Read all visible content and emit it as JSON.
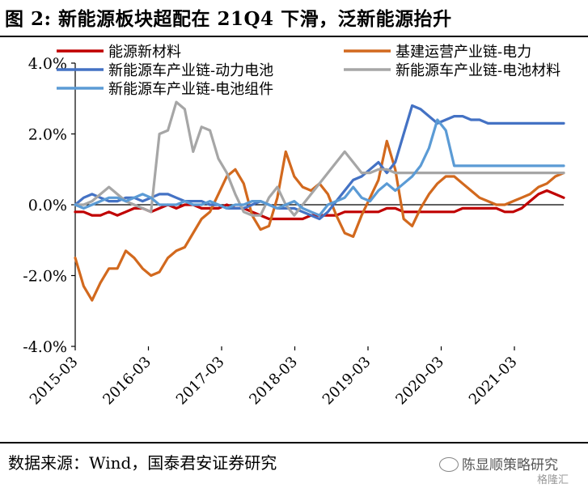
{
  "title": "图 2: 新能源板块超配在 21Q4 下滑，泛新能源抬升",
  "source": "数据来源：Wind，国泰君安证券研究",
  "brand": "陈显顺策略研究",
  "watermark": "格隆汇",
  "chart_data": {
    "type": "line",
    "title": "",
    "xlabel": "",
    "ylabel": "",
    "ylim": [
      -4.0,
      4.0
    ],
    "y_ticks": [
      "4.0%",
      "2.0%",
      "0.0%",
      "-2.0%",
      "-4.0%"
    ],
    "y_tick_values": [
      4,
      2,
      0,
      -2,
      -4
    ],
    "x_start": "2015-03",
    "x_ticks": [
      "2015-03",
      "2016-03",
      "2017-03",
      "2018-03",
      "2019-03",
      "2020-03",
      "2021-03"
    ],
    "grid": false,
    "legend": "top",
    "series": [
      {
        "name": "能源新材料",
        "color": "#C00000",
        "values": [
          -0.2,
          -0.2,
          -0.3,
          -0.3,
          -0.2,
          -0.3,
          -0.2,
          -0.1,
          -0.1,
          -0.2,
          -0.1,
          0.0,
          -0.1,
          0.0,
          0.0,
          -0.1,
          -0.1,
          -0.1,
          0.0,
          -0.1,
          -0.1,
          -0.2,
          -0.3,
          -0.4,
          -0.4,
          -0.4,
          -0.4,
          -0.4,
          -0.3,
          -0.3,
          -0.3,
          -0.3,
          -0.2,
          -0.2,
          -0.2,
          -0.2,
          -0.2,
          -0.1,
          -0.1,
          -0.2,
          -0.2,
          -0.2,
          -0.2,
          -0.2,
          -0.2,
          -0.2,
          -0.1,
          -0.1,
          -0.1,
          -0.1,
          -0.1,
          -0.2,
          -0.2,
          -0.1,
          0.1,
          0.3,
          0.4,
          0.3,
          0.2
        ]
      },
      {
        "name": "基建运营产业链-电力",
        "color": "#D2691E",
        "values": [
          -1.5,
          -2.3,
          -2.7,
          -2.2,
          -1.8,
          -1.8,
          -1.3,
          -1.5,
          -1.8,
          -2.0,
          -1.9,
          -1.5,
          -1.3,
          -1.2,
          -0.8,
          -0.4,
          -0.2,
          0.3,
          0.8,
          1.0,
          0.6,
          -0.3,
          -0.7,
          -0.6,
          0.2,
          1.5,
          0.8,
          0.5,
          0.4,
          0.6,
          0.3,
          -0.3,
          -0.8,
          -0.9,
          -0.3,
          0.2,
          0.7,
          1.8,
          1.0,
          -0.4,
          -0.6,
          -0.1,
          0.3,
          0.6,
          0.8,
          0.8,
          0.6,
          0.4,
          0.2,
          0.1,
          0.0,
          0.0,
          0.1,
          0.2,
          0.3,
          0.5,
          0.6,
          0.8,
          0.9
        ]
      },
      {
        "name": "新能源车产业链-动力电池",
        "color": "#4472C4",
        "values": [
          0.0,
          0.2,
          0.3,
          0.2,
          0.1,
          0.1,
          0.2,
          0.2,
          0.1,
          0.2,
          0.3,
          0.3,
          0.2,
          0.1,
          0.1,
          0.1,
          0.0,
          0.0,
          -0.1,
          -0.1,
          -0.1,
          0.0,
          0.1,
          0.0,
          -0.1,
          -0.1,
          -0.1,
          -0.2,
          -0.3,
          -0.4,
          -0.2,
          0.1,
          0.4,
          0.7,
          0.8,
          1.0,
          1.2,
          0.9,
          1.2,
          2.0,
          2.8,
          2.7,
          2.5,
          2.3,
          2.4,
          2.5,
          2.5,
          2.4,
          2.4,
          2.3,
          2.3,
          2.3,
          2.3,
          2.3,
          2.3,
          2.3,
          2.3,
          2.3,
          2.3
        ]
      },
      {
        "name": "新能源车产业链-电池材料",
        "color": "#A6A6A6",
        "values": [
          0.0,
          0.0,
          0.1,
          0.3,
          0.5,
          0.3,
          0.1,
          0.0,
          -0.1,
          -0.2,
          2.0,
          2.1,
          2.9,
          2.7,
          1.5,
          2.2,
          2.1,
          1.3,
          0.9,
          0.3,
          -0.2,
          -0.3,
          -0.3,
          0.2,
          0.5,
          0.0,
          -0.3,
          0.0,
          0.3,
          0.6,
          0.9,
          1.2,
          1.5,
          1.2,
          0.9,
          0.9,
          1.0,
          1.0,
          0.9,
          0.9,
          0.9,
          0.9,
          0.9,
          0.9,
          0.9,
          0.9,
          0.9,
          0.9,
          0.9,
          0.9,
          0.9,
          0.9,
          0.9,
          0.9,
          0.9,
          0.9,
          0.9,
          0.9,
          0.9
        ]
      },
      {
        "name": "新能源车产业链-电池组件",
        "color": "#5B9BD5",
        "values": [
          0.0,
          -0.1,
          0.0,
          0.1,
          0.2,
          0.2,
          0.1,
          0.2,
          0.3,
          0.2,
          0.0,
          0.0,
          0.0,
          0.1,
          0.0,
          0.0,
          0.1,
          0.0,
          -0.1,
          0.0,
          0.0,
          0.1,
          0.1,
          0.0,
          -0.1,
          0.0,
          0.1,
          -0.1,
          -0.2,
          -0.3,
          0.0,
          0.1,
          0.2,
          0.5,
          0.2,
          0.1,
          0.4,
          0.6,
          0.4,
          0.6,
          0.8,
          1.1,
          1.6,
          2.4,
          2.1,
          1.1,
          1.1,
          1.1,
          1.1,
          1.1,
          1.1,
          1.1,
          1.1,
          1.1,
          1.1,
          1.1,
          1.1,
          1.1,
          1.1
        ]
      }
    ]
  }
}
